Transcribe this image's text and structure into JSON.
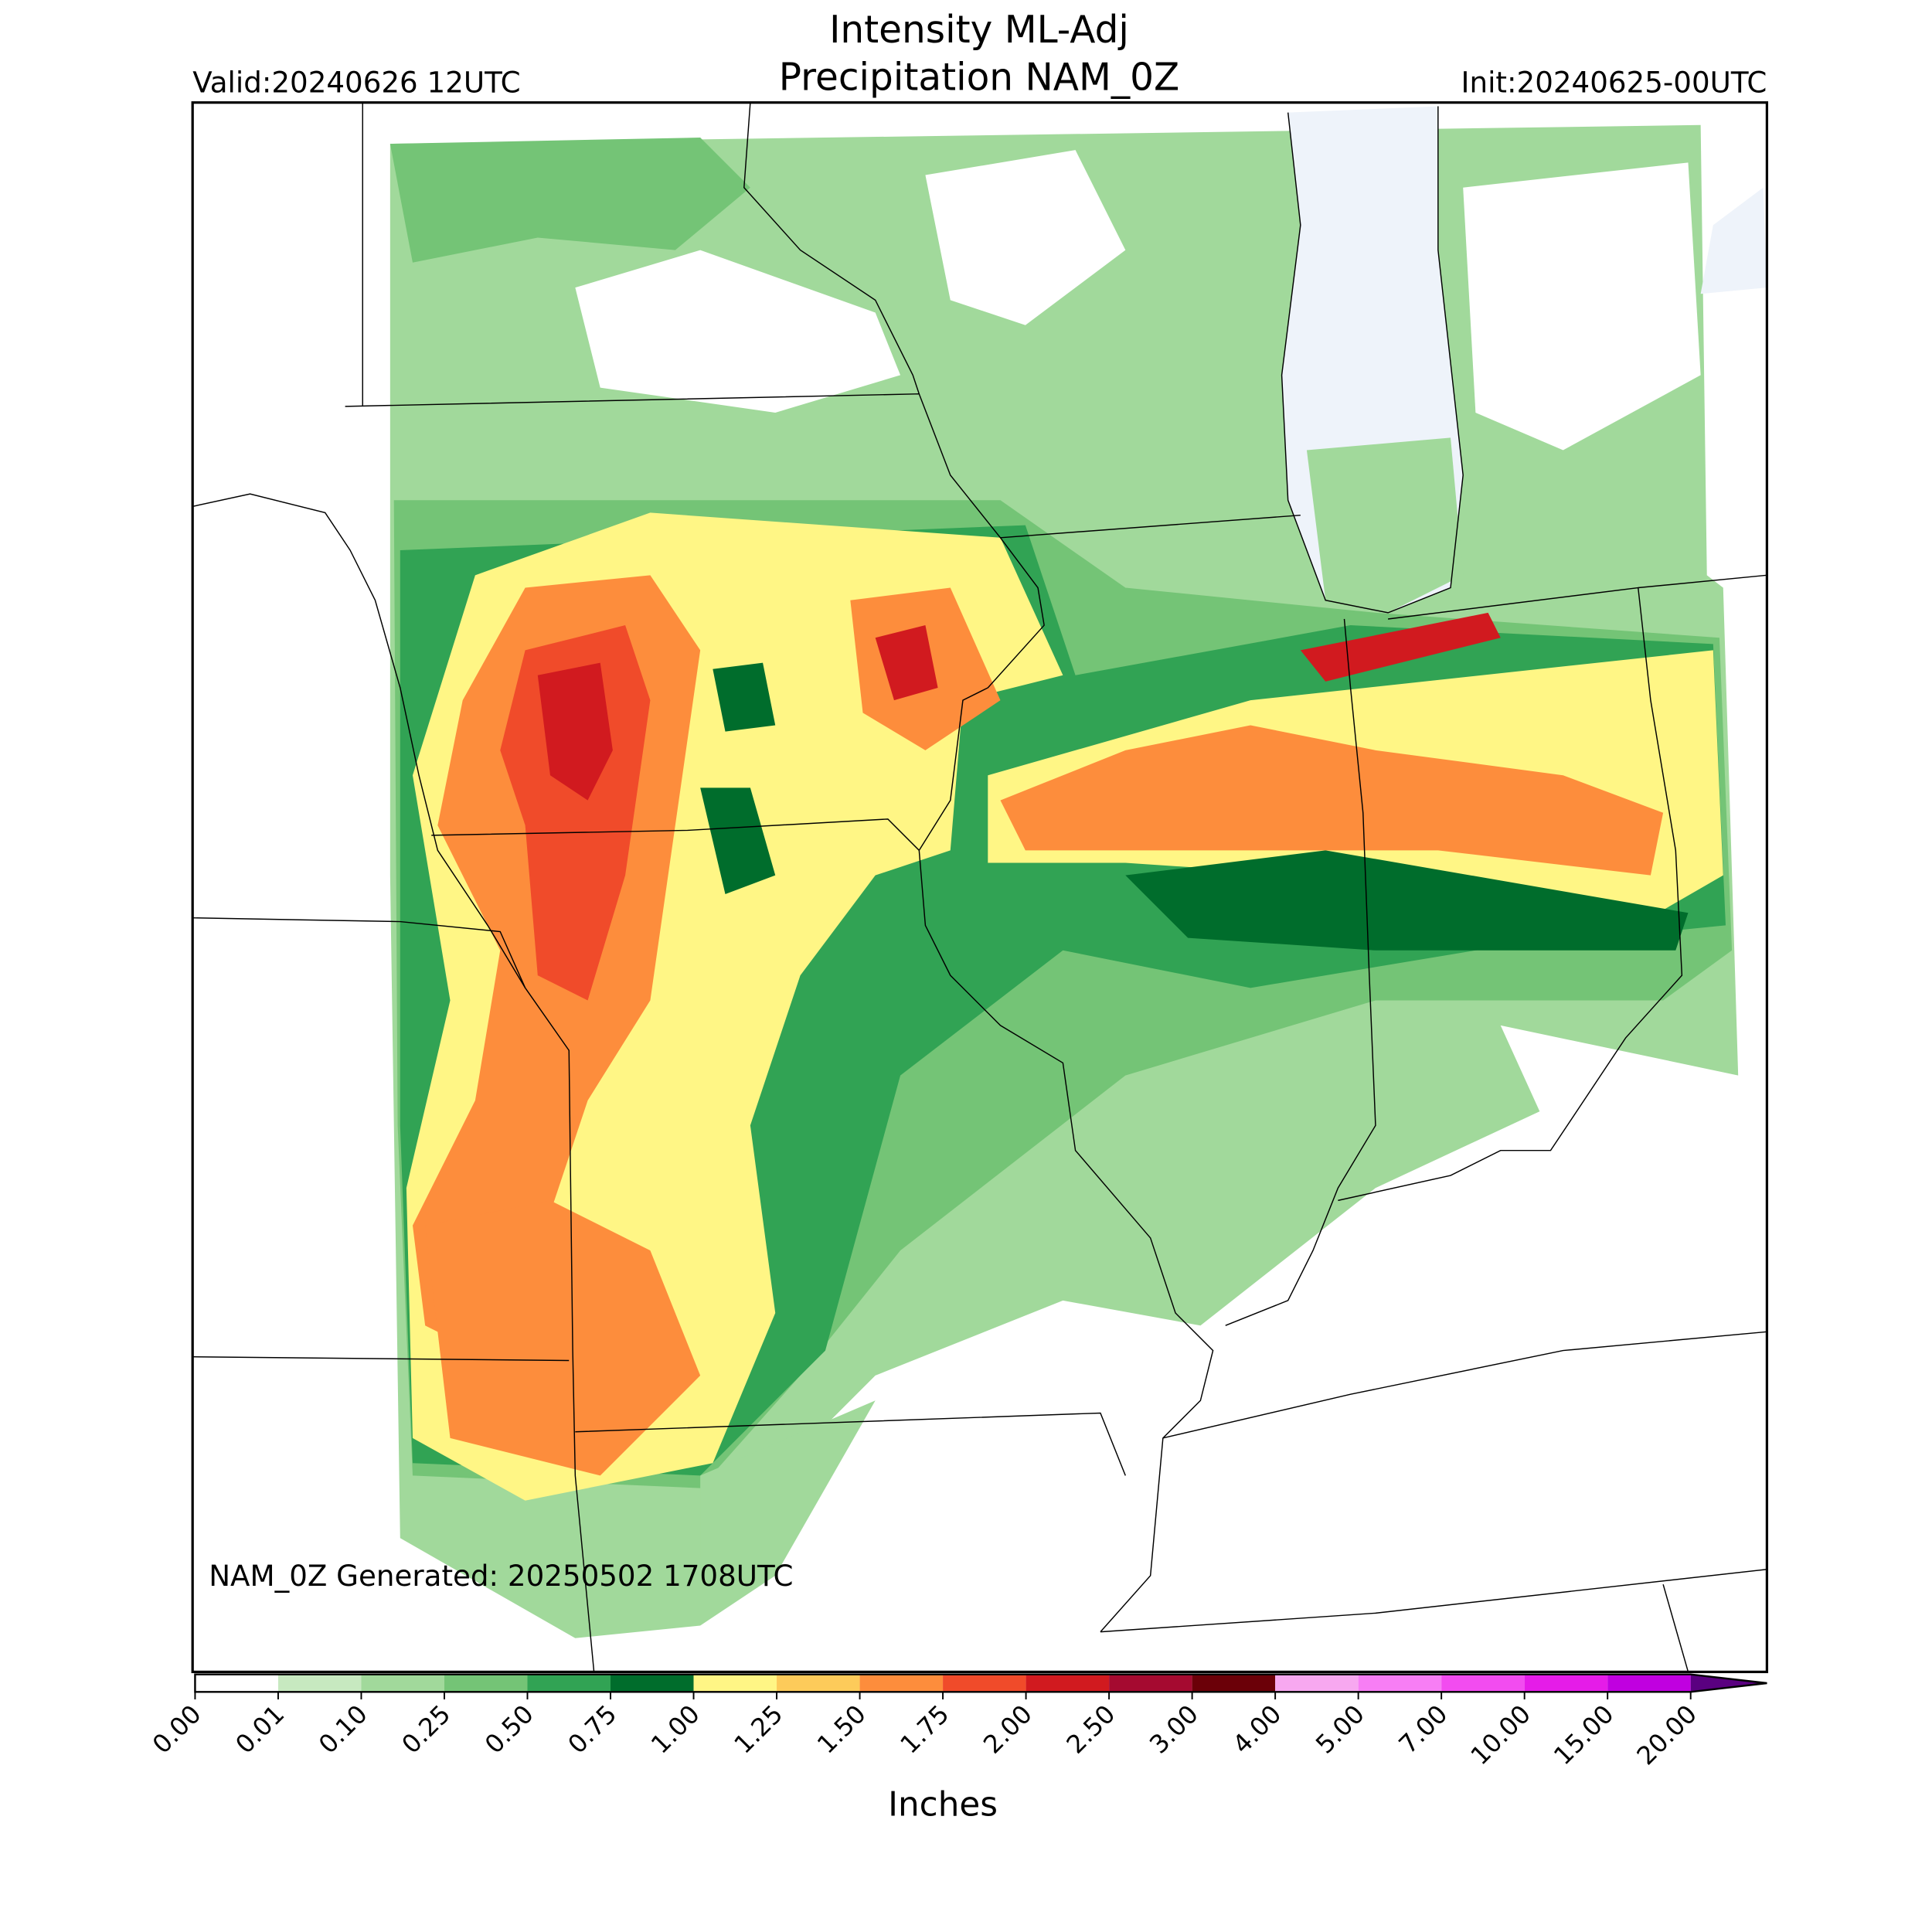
{
  "header": {
    "title_line1": "Intensity ML-Adj",
    "title_line2": "Precipitation NAM_0Z",
    "valid": "Valid:20240626 12UTC",
    "init": "Init:20240625-00UTC"
  },
  "map": {
    "annotation": "NAM_0Z Generated: 20250502 1708UTC"
  },
  "colorbar": {
    "label": "Inches",
    "ticks": [
      {
        "value": 0,
        "label": "0.00"
      },
      {
        "value": 0.01,
        "label": "0.01"
      },
      {
        "value": 0.1,
        "label": "0.10"
      },
      {
        "value": 0.25,
        "label": "0.25"
      },
      {
        "value": 0.5,
        "label": "0.50"
      },
      {
        "value": 0.75,
        "label": "0.75"
      },
      {
        "value": 1,
        "label": "1.00"
      },
      {
        "value": 1.25,
        "label": "1.25"
      },
      {
        "value": 1.5,
        "label": "1.50"
      },
      {
        "value": 1.75,
        "label": "1.75"
      },
      {
        "value": 2,
        "label": "2.00"
      },
      {
        "value": 2.5,
        "label": "2.50"
      },
      {
        "value": 3,
        "label": "3.00"
      },
      {
        "value": 4,
        "label": "4.00"
      },
      {
        "value": 5,
        "label": "5.00"
      },
      {
        "value": 7,
        "label": "7.00"
      },
      {
        "value": 10,
        "label": "10.00"
      },
      {
        "value": 15,
        "label": "15.00"
      },
      {
        "value": 20,
        "label": "20.00"
      }
    ],
    "colors": [
      "#ffffff",
      "#c7e9c0",
      "#a1d99b",
      "#74c476",
      "#31a354",
      "#006d2c",
      "#fff685",
      "#fdcb5a",
      "#fd8d3c",
      "#f04b2a",
      "#d11a1f",
      "#a50a30",
      "#6b0008",
      "#f7a8f0",
      "#f77ef5",
      "#f24cf0",
      "#e51ce8",
      "#c000e0",
      "#8a00cc",
      "#5a0080"
    ]
  }
}
